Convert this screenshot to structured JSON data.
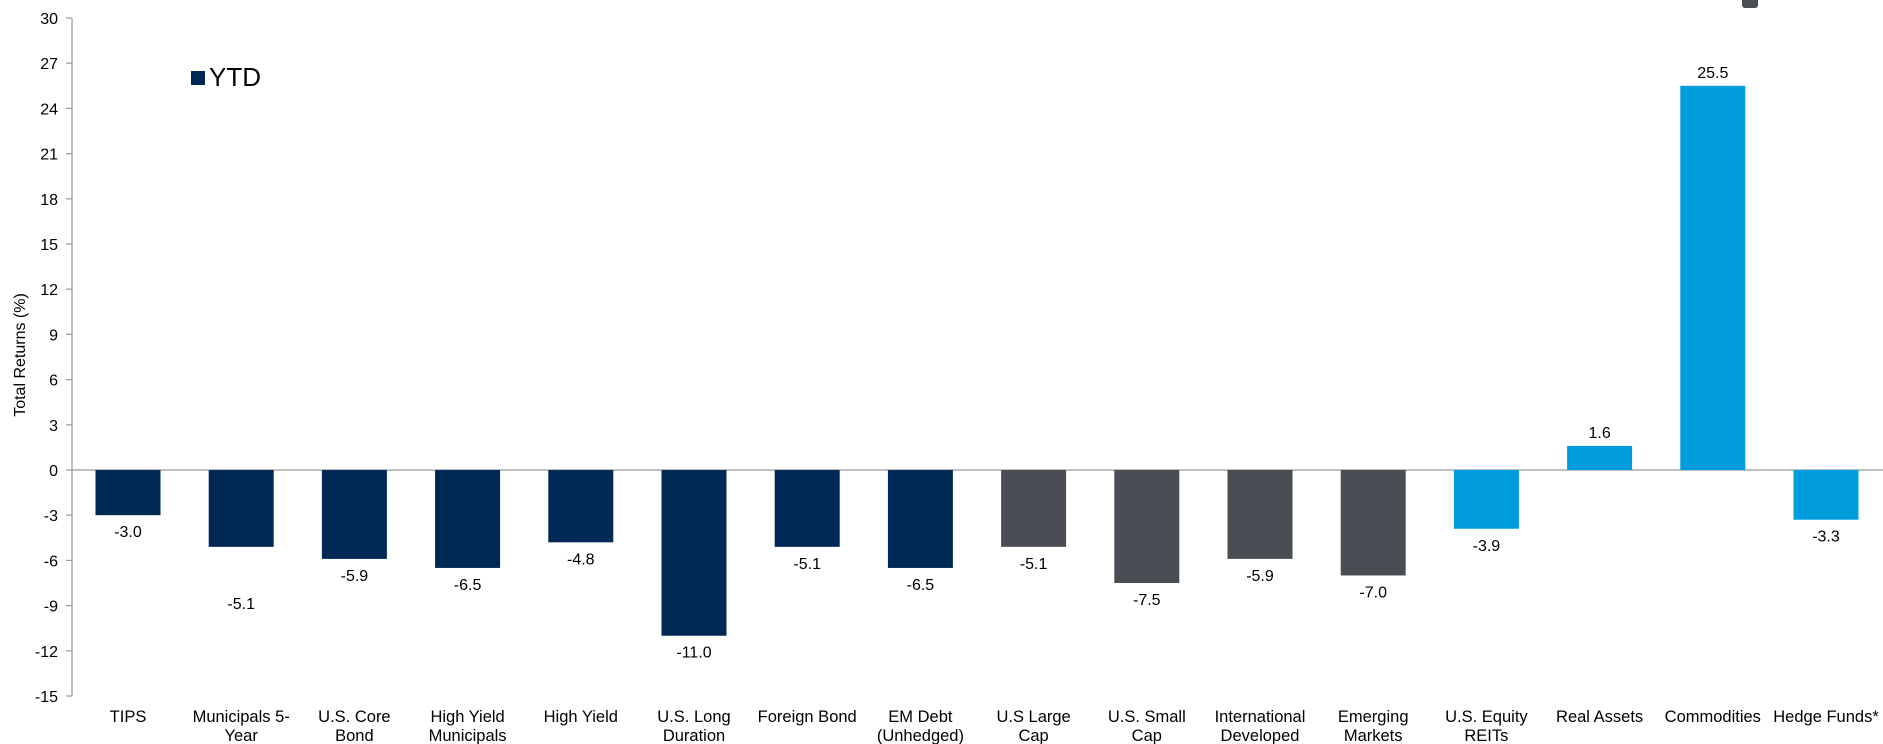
{
  "chart_data": {
    "type": "bar",
    "ylabel": "Total Returns (%)",
    "ylim": [
      -15,
      30
    ],
    "yticks": [
      30,
      27,
      24,
      21,
      18,
      15,
      12,
      9,
      6,
      3,
      0,
      -3,
      -6,
      -9,
      -12,
      -15
    ],
    "grid": false,
    "legend": {
      "position": "top-left",
      "entries": [
        {
          "name": "YTD",
          "color": "#002855"
        }
      ]
    },
    "categories": [
      "TIPS",
      "Municipals 5-\nYear",
      "U.S. Core\nBond",
      "High Yield\nMunicipals",
      "High Yield",
      "U.S. Long\nDuration",
      "Foreign Bond",
      "EM Debt\n(Unhedged)",
      "U.S Large\nCap",
      "U.S. Small\nCap",
      "International\nDeveloped",
      "Emerging\nMarkets",
      "U.S. Equity\nREITs",
      "Real Assets",
      "Commodities",
      "Hedge Funds*"
    ],
    "values": [
      -3.0,
      -5.1,
      -5.9,
      -6.5,
      -4.8,
      -11.0,
      -5.1,
      -6.5,
      -5.1,
      -7.5,
      -5.9,
      -7.0,
      -3.9,
      1.6,
      25.5,
      -3.3
    ],
    "data_labels": [
      "-3.0",
      "-5.1",
      "-5.9",
      "-6.5",
      "-4.8",
      "-11.0",
      "-5.1",
      "-6.5",
      "-5.1",
      "-7.5",
      "-5.9",
      "-7.0",
      "-3.9",
      "1.6",
      "25.5",
      "-3.3"
    ],
    "bar_colors": [
      "#002855",
      "#002855",
      "#002855",
      "#002855",
      "#002855",
      "#002855",
      "#002855",
      "#002855",
      "#4a4e54",
      "#4a4e54",
      "#4a4e54",
      "#4a4e54",
      "#009ddc",
      "#009ddc",
      "#009ddc",
      "#009ddc"
    ]
  }
}
